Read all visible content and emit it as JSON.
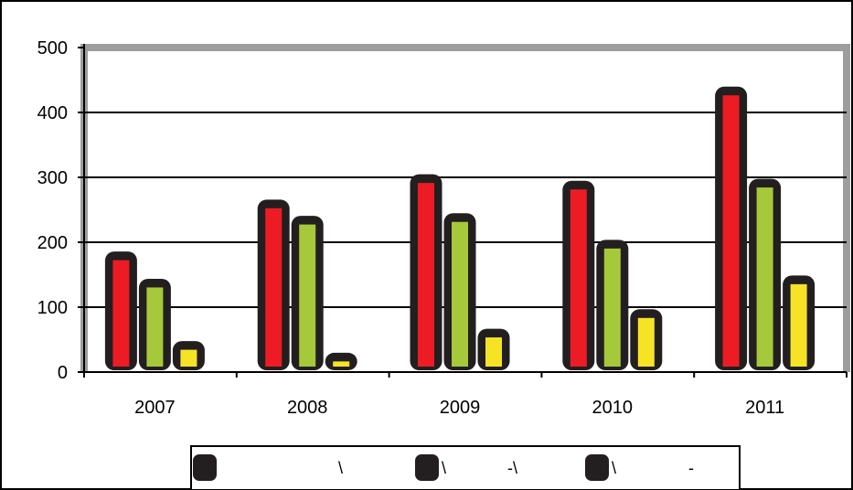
{
  "chart_data": {
    "type": "bar",
    "title": "",
    "xlabel": "",
    "ylabel": "",
    "categories": [
      "2007",
      "2008",
      "2009",
      "2010",
      "2011"
    ],
    "ylim": [
      0,
      500
    ],
    "yticks": [
      0,
      100,
      200,
      300,
      400,
      500
    ],
    "ytick_labels": [
      "0",
      "100",
      "200",
      "300",
      "400",
      "500"
    ],
    "grid": true,
    "legend_position": "bottom",
    "series": [
      {
        "color": "#ed1c24",
        "values": [
          178,
          258,
          297,
          287,
          432
        ]
      },
      {
        "color": "#a5c93a",
        "values": [
          136,
          233,
          237,
          196,
          290
        ]
      },
      {
        "color": "#f7e326",
        "values": [
          40,
          22,
          59,
          89,
          141
        ]
      }
    ],
    "legend": [
      {
        "label": "\\",
        "color": "#231f20"
      },
      {
        "label": "\\ -\\",
        "color": "#231f20"
      },
      {
        "label": "\\ -",
        "color": "#231f20"
      }
    ]
  }
}
